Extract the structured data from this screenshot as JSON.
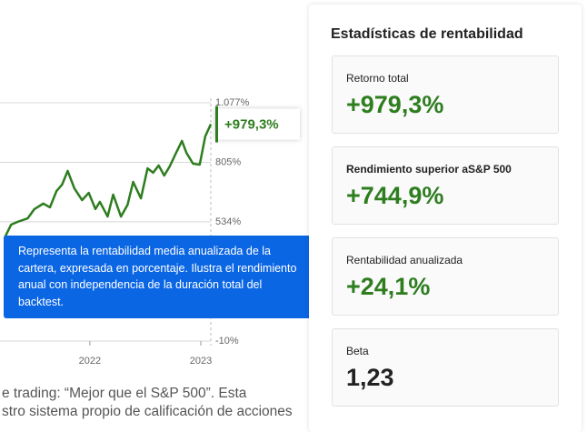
{
  "chart_data": {
    "type": "line",
    "x": [
      2021.23,
      2021.29,
      2021.35,
      2021.44,
      2021.5,
      2021.58,
      2021.64,
      2021.7,
      2021.75,
      2021.8,
      2021.86,
      2021.93,
      2021.99,
      2022.05,
      2022.09,
      2022.16,
      2022.21,
      2022.28,
      2022.34,
      2022.39,
      2022.46,
      2022.52,
      2022.57,
      2022.62,
      2022.67,
      2022.72,
      2022.77,
      2022.83,
      2022.87,
      2022.93,
      2022.99,
      2023.04,
      2023.09
    ],
    "series": [
      {
        "color": "#2e7d1f",
        "values": [
          459,
          521,
          534,
          550,
          592,
          617,
          600,
          675,
          704,
          766,
          687,
          633,
          666,
          592,
          625,
          558,
          658,
          558,
          612,
          716,
          641,
          778,
          758,
          791,
          745,
          787,
          841,
          903,
          849,
          799,
          795,
          924,
          979.3
        ],
        "value_labels": [
          null,
          null,
          null,
          null,
          null,
          null,
          null,
          null,
          null,
          null,
          null,
          null,
          null,
          null,
          null,
          null,
          null,
          null,
          null,
          null,
          null,
          null,
          null,
          null,
          null,
          null,
          null,
          null,
          null,
          null,
          null,
          null,
          "+979,3%"
        ]
      }
    ],
    "xlim": [
      2021.19,
      2023.09
    ],
    "xticks": [
      2022,
      2023
    ],
    "ylim": [
      -10,
      1077
    ],
    "yticks": [
      {
        "value": 1077,
        "label": "1.077%"
      },
      {
        "value": 805,
        "label": "805%"
      },
      {
        "value": 534,
        "label": "534%"
      },
      {
        "value": -10,
        "label": "-10%"
      }
    ]
  },
  "tooltip": {
    "lines": [
      "Representa la rentabilidad media anualizada de la",
      "cartera, expresada en porcentaje. Ilustra el rendimiento",
      "anual con independencia de la duración total del",
      "backtest."
    ]
  },
  "body_text": [
    "e trading: “Mejor que el S&P 500”. Esta",
    "stro sistema propio de calificación de acciones"
  ],
  "panel": {
    "title": "Estadísticas de rentabilidad",
    "stats": [
      {
        "label": "Retorno total",
        "value": "+979,3%"
      },
      {
        "label": "Rendimiento superior aS&P 500",
        "value": "+744,9%"
      },
      {
        "label": "Rentabilidad anualizada",
        "value": "+24,1%"
      },
      {
        "label": "Beta",
        "value": "1,23"
      }
    ]
  }
}
